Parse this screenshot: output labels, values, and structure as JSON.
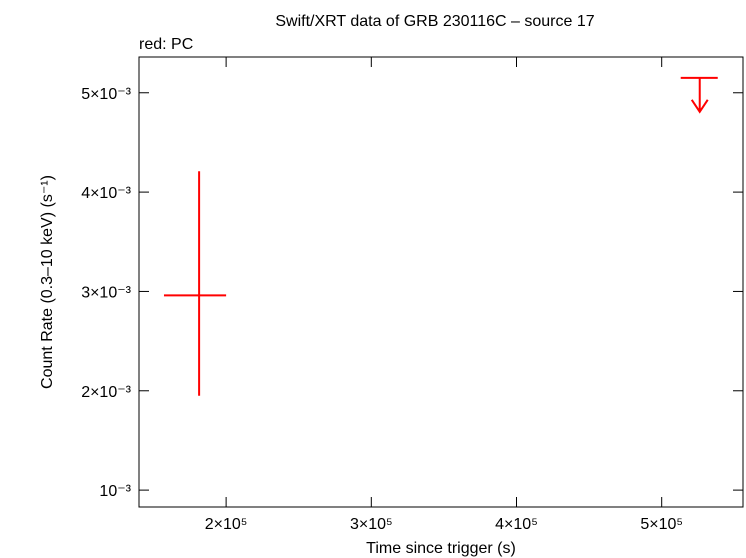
{
  "chart_data": {
    "type": "errorbar",
    "title": "Swift/XRT data of GRB 230116C – source 17",
    "legend_text": "red: PC",
    "x_label": "Time since trigger (s)",
    "y_label": "Count Rate (0.3–10 keV) (s⁻¹)",
    "xlim": [
      140000,
      556000
    ],
    "ylim": [
      0.00083,
      0.00536
    ],
    "xticks": [
      {
        "value": 200000,
        "label": "2×10⁵"
      },
      {
        "value": 300000,
        "label": "3×10⁵"
      },
      {
        "value": 400000,
        "label": "4×10⁵"
      },
      {
        "value": 500000,
        "label": "5×10⁵"
      }
    ],
    "yticks": [
      {
        "value": 0.001,
        "label": "10⁻³"
      },
      {
        "value": 0.002,
        "label": "2×10⁻³"
      },
      {
        "value": 0.003,
        "label": "3×10⁻³"
      },
      {
        "value": 0.004,
        "label": "4×10⁻³"
      },
      {
        "value": 0.005,
        "label": "5×10⁻³"
      }
    ],
    "series": [
      {
        "name": "PC",
        "color": "#ff0000",
        "x": [
          181400
        ],
        "values": [
          0.00296
        ],
        "xerr_minus": [
          24200
        ],
        "xerr_plus": [
          18600
        ],
        "yerr_minus": [
          0.00101
        ],
        "yerr_plus": [
          0.00125
        ]
      },
      {
        "color": "#ff0000",
        "upper_limit": true,
        "x": [
          526200
        ],
        "values": [
          0.00515
        ],
        "xerr_minus": [
          13100
        ],
        "xerr_plus": [
          12400
        ]
      }
    ]
  }
}
